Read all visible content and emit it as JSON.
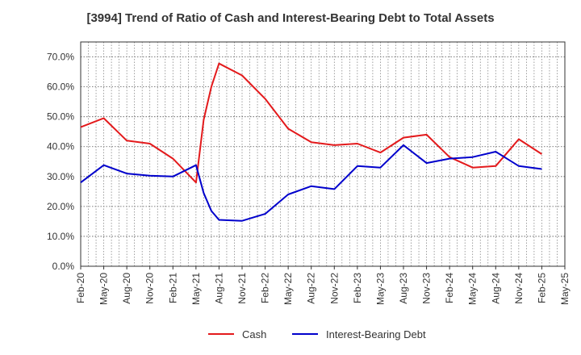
{
  "chart_data": {
    "type": "line",
    "title": "[3994]  Trend of Ratio of Cash and Interest-Bearing Debt to Total Assets",
    "xlabel": "",
    "ylabel": "",
    "ylim": [
      0,
      75
    ],
    "y_ticks": [
      0,
      10,
      20,
      30,
      40,
      50,
      60,
      70
    ],
    "y_tick_labels": [
      "0.0%",
      "10.0%",
      "20.0%",
      "30.0%",
      "40.0%",
      "50.0%",
      "60.0%",
      "70.0%"
    ],
    "x_tick_labels": [
      "Feb-20",
      "May-20",
      "Aug-20",
      "Nov-20",
      "Feb-21",
      "May-21",
      "Aug-21",
      "Nov-21",
      "Feb-22",
      "May-22",
      "Aug-22",
      "Nov-22",
      "Feb-23",
      "May-23",
      "Aug-23",
      "Nov-23",
      "Feb-24",
      "May-24",
      "Aug-24",
      "Nov-24",
      "Feb-25",
      "May-25"
    ],
    "grid": true,
    "legend_position": "bottom",
    "series": [
      {
        "name": "Cash",
        "color": "#e31a1c",
        "points": [
          {
            "x": "Feb-20",
            "y": 46.5
          },
          {
            "x": "May-20",
            "y": 49.5
          },
          {
            "x": "Aug-20",
            "y": 42.0
          },
          {
            "x": "Nov-20",
            "y": 41.0
          },
          {
            "x": "Feb-21",
            "y": 36.0
          },
          {
            "x": "May-21",
            "y": 28.0
          },
          {
            "x": "Jun-21",
            "y": 49.0
          },
          {
            "x": "Jul-21",
            "y": 60.0
          },
          {
            "x": "Aug-21",
            "y": 67.8
          },
          {
            "x": "Nov-21",
            "y": 63.8
          },
          {
            "x": "Feb-22",
            "y": 56.0
          },
          {
            "x": "May-22",
            "y": 46.0
          },
          {
            "x": "Aug-22",
            "y": 41.5
          },
          {
            "x": "Nov-22",
            "y": 40.5
          },
          {
            "x": "Feb-23",
            "y": 41.0
          },
          {
            "x": "May-23",
            "y": 38.0
          },
          {
            "x": "Aug-23",
            "y": 43.0
          },
          {
            "x": "Nov-23",
            "y": 44.0
          },
          {
            "x": "Feb-24",
            "y": 36.5
          },
          {
            "x": "May-24",
            "y": 33.0
          },
          {
            "x": "Aug-24",
            "y": 33.5
          },
          {
            "x": "Nov-24",
            "y": 42.5
          },
          {
            "x": "Feb-25",
            "y": 37.5
          }
        ]
      },
      {
        "name": "Interest-Bearing Debt",
        "color": "#0000cc",
        "points": [
          {
            "x": "Feb-20",
            "y": 28.0
          },
          {
            "x": "May-20",
            "y": 33.8
          },
          {
            "x": "Aug-20",
            "y": 31.0
          },
          {
            "x": "Nov-20",
            "y": 30.3
          },
          {
            "x": "Feb-21",
            "y": 30.0
          },
          {
            "x": "May-21",
            "y": 33.8
          },
          {
            "x": "Jun-21",
            "y": 24.5
          },
          {
            "x": "Jul-21",
            "y": 18.5
          },
          {
            "x": "Aug-21",
            "y": 15.5
          },
          {
            "x": "Nov-21",
            "y": 15.2
          },
          {
            "x": "Feb-22",
            "y": 17.5
          },
          {
            "x": "May-22",
            "y": 24.0
          },
          {
            "x": "Aug-22",
            "y": 26.8
          },
          {
            "x": "Nov-22",
            "y": 25.8
          },
          {
            "x": "Feb-23",
            "y": 33.5
          },
          {
            "x": "May-23",
            "y": 33.0
          },
          {
            "x": "Aug-23",
            "y": 40.5
          },
          {
            "x": "Nov-23",
            "y": 34.5
          },
          {
            "x": "Feb-24",
            "y": 36.0
          },
          {
            "x": "May-24",
            "y": 36.5
          },
          {
            "x": "Aug-24",
            "y": 38.3
          },
          {
            "x": "Nov-24",
            "y": 33.5
          },
          {
            "x": "Feb-25",
            "y": 32.5
          }
        ]
      }
    ]
  }
}
